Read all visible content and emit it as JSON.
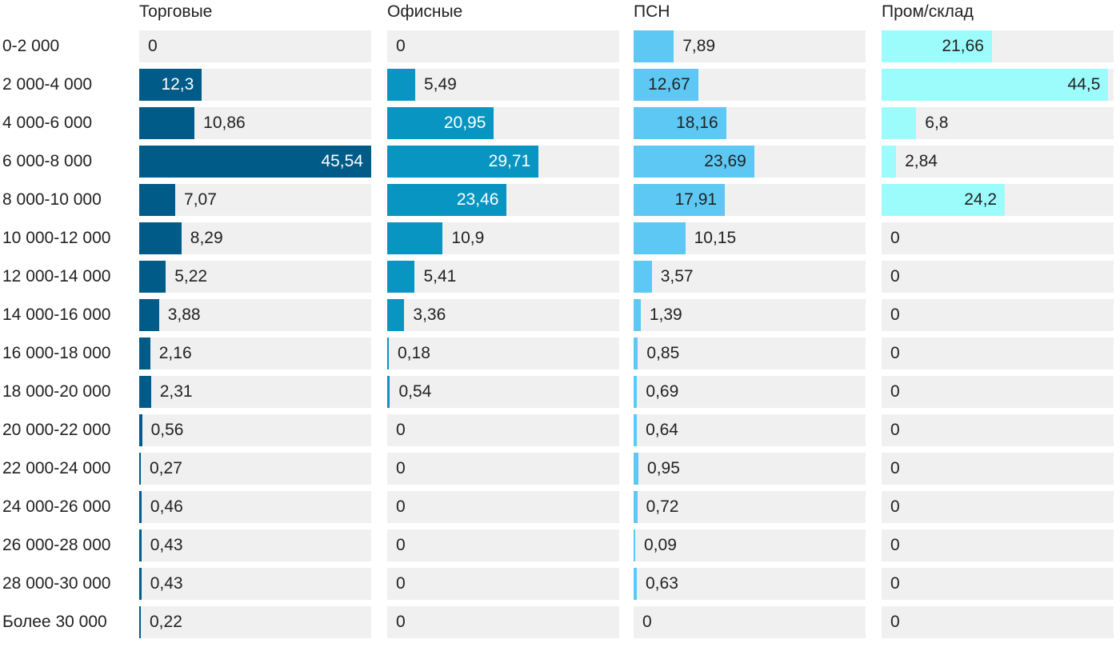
{
  "chart_data": {
    "type": "bar",
    "orientation": "horizontal",
    "layout": "small-multiples",
    "categories": [
      "0-2 000",
      "2 000-4 000",
      "4 000-6 000",
      "6 000-8 000",
      "8 000-10 000",
      "10 000-12 000",
      "12 000-14 000",
      "14 000-16 000",
      "16 000-18 000",
      "18 000-20 000",
      "20 000-22 000",
      "22 000-24 000",
      "24 000-26 000",
      "26 000-28 000",
      "28 000-30 000",
      "Более 30 000"
    ],
    "xlim": [
      0,
      45.54
    ],
    "series": [
      {
        "name": "Торговые",
        "color": "#005b88",
        "text_inside": "#ffffff",
        "values": [
          0,
          12.3,
          10.86,
          45.54,
          7.07,
          8.29,
          5.22,
          3.88,
          2.16,
          2.31,
          0.56,
          0.27,
          0.46,
          0.43,
          0.43,
          0.22
        ],
        "labels": [
          "0",
          "12,3",
          "10,86",
          "45,54",
          "7,07",
          "8,29",
          "5,22",
          "3,88",
          "2,16",
          "2,31",
          "0,56",
          "0,27",
          "0,46",
          "0,43",
          "0,43",
          "0,22"
        ]
      },
      {
        "name": "Офисные",
        "color": "#0895c2",
        "text_inside": "#ffffff",
        "values": [
          0,
          5.49,
          20.95,
          29.71,
          23.46,
          10.9,
          5.41,
          3.36,
          0.18,
          0.54,
          0,
          0,
          0,
          0,
          0,
          0
        ],
        "labels": [
          "0",
          "5,49",
          "20,95",
          "29,71",
          "23,46",
          "10,9",
          "5,41",
          "3,36",
          "0,18",
          "0,54",
          "0",
          "0",
          "0",
          "0",
          "0",
          "0"
        ]
      },
      {
        "name": "ПСН",
        "color": "#5dc8f4",
        "text_inside": "#222222",
        "values": [
          7.89,
          12.67,
          18.16,
          23.69,
          17.91,
          10.15,
          3.57,
          1.39,
          0.85,
          0.69,
          0.64,
          0.95,
          0.72,
          0.09,
          0.63,
          0
        ],
        "labels": [
          "7,89",
          "12,67",
          "18,16",
          "23,69",
          "17,91",
          "10,15",
          "3,57",
          "1,39",
          "0,85",
          "0,69",
          "0,64",
          "0,95",
          "0,72",
          "0,09",
          "0,63",
          "0"
        ]
      },
      {
        "name": "Пром/склад",
        "color": "#9cfcfc",
        "text_inside": "#222222",
        "values": [
          21.66,
          44.5,
          6.8,
          2.84,
          24.2,
          0,
          0,
          0,
          0,
          0,
          0,
          0,
          0,
          0,
          0,
          0
        ],
        "labels": [
          "21,66",
          "44,5",
          "6,8",
          "2,84",
          "24,2",
          "0",
          "0",
          "0",
          "0",
          "0",
          "0",
          "0",
          "0",
          "0",
          "0",
          "0"
        ]
      }
    ],
    "track_color": "#f0f0f0",
    "grid": false,
    "legend": "none"
  }
}
